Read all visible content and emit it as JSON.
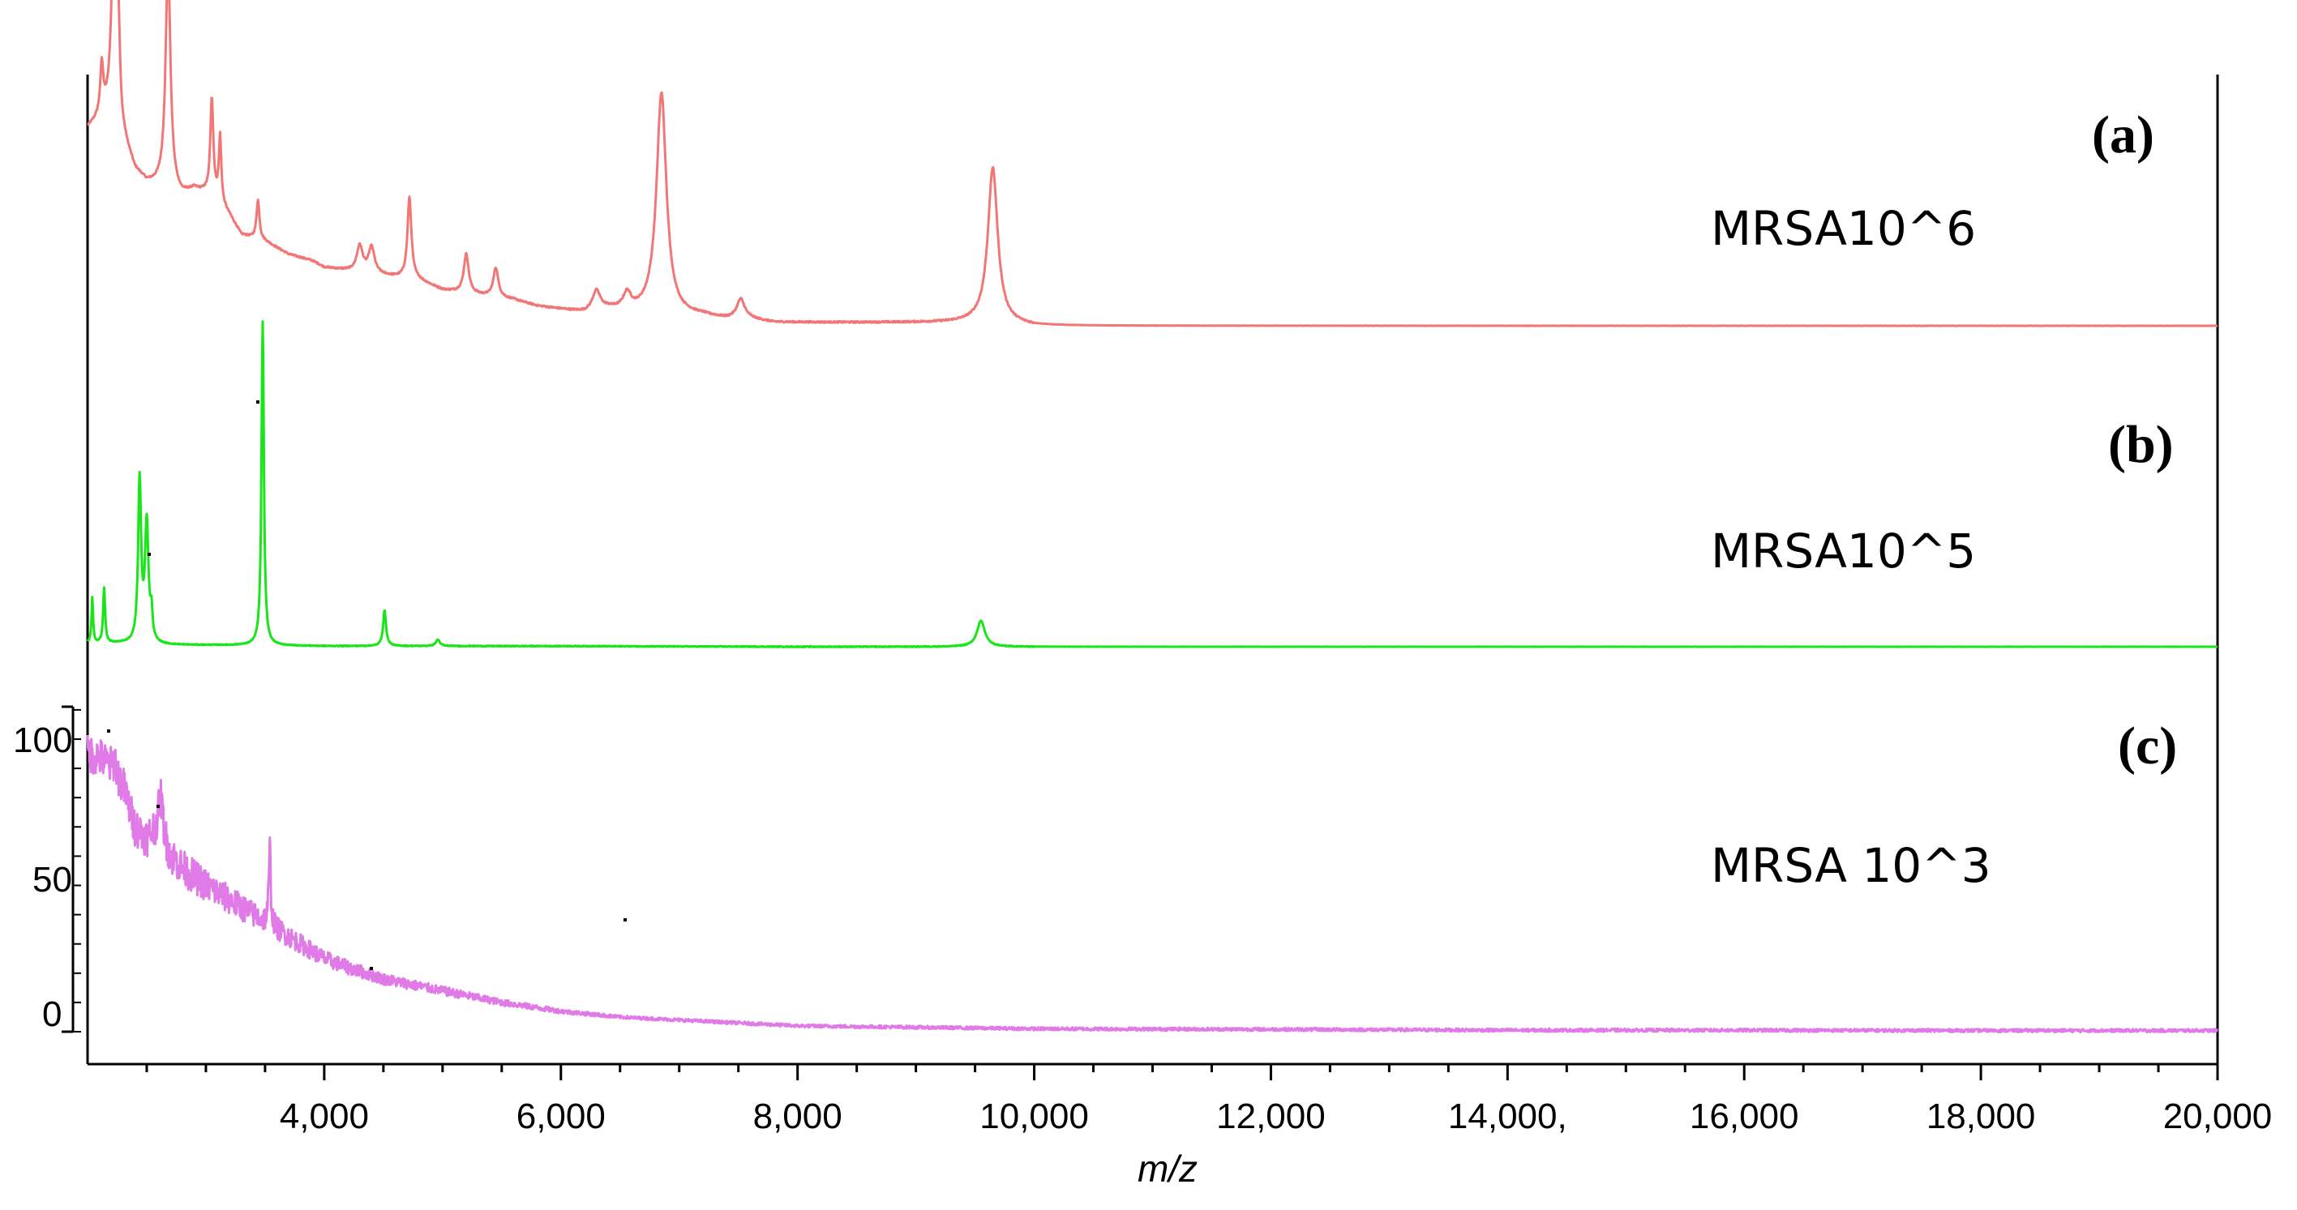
{
  "chart_data": {
    "type": "line",
    "xlabel": "m/z",
    "xlim": [
      2000,
      20000
    ],
    "x_ticks": [
      {
        "value": 4000,
        "label": "4,000"
      },
      {
        "value": 6000,
        "label": "6,000"
      },
      {
        "value": 8000,
        "label": "8,000"
      },
      {
        "value": 10000,
        "label": "10,000"
      },
      {
        "value": 12000,
        "label": "12,000"
      },
      {
        "value": 14000,
        "label": "14,000,"
      },
      {
        "value": 16000,
        "label": "16,000"
      },
      {
        "value": 18000,
        "label": "18,000"
      },
      {
        "value": 20000,
        "label": "20,000"
      }
    ],
    "y_ticks": [
      {
        "value": 100,
        "label": "100"
      },
      {
        "value": 50,
        "label": "50"
      },
      {
        "value": 0,
        "label": "0"
      }
    ],
    "ylim": [
      0,
      100
    ],
    "series": [
      {
        "panel": "(a)",
        "name": "MRSA10^6",
        "color": "#f27676",
        "baseline": 4,
        "points": [
          [
            2000,
            65
          ],
          [
            2100,
            68
          ],
          [
            2200,
            72
          ],
          [
            2300,
            62
          ],
          [
            2400,
            52
          ],
          [
            2500,
            48
          ],
          [
            2600,
            47
          ],
          [
            2700,
            45
          ],
          [
            2800,
            44
          ],
          [
            2900,
            46
          ],
          [
            3000,
            45
          ],
          [
            3100,
            43
          ],
          [
            3200,
            38
          ],
          [
            3300,
            32
          ],
          [
            3400,
            31
          ],
          [
            3500,
            30
          ],
          [
            3600,
            28
          ],
          [
            3700,
            26
          ],
          [
            3800,
            25
          ],
          [
            3900,
            24
          ],
          [
            4000,
            22
          ],
          [
            4200,
            21
          ],
          [
            4400,
            20
          ],
          [
            4600,
            19
          ],
          [
            4800,
            18
          ],
          [
            5000,
            15
          ],
          [
            5200,
            14
          ],
          [
            5400,
            13
          ],
          [
            5600,
            12
          ],
          [
            5800,
            10
          ],
          [
            6000,
            9
          ],
          [
            6200,
            8
          ],
          [
            6400,
            9
          ],
          [
            6600,
            8
          ],
          [
            6800,
            8
          ],
          [
            7000,
            7
          ],
          [
            7200,
            7
          ],
          [
            7400,
            6
          ],
          [
            7600,
            6
          ],
          [
            7800,
            5
          ],
          [
            8000,
            5
          ],
          [
            8500,
            5
          ],
          [
            9000,
            5
          ],
          [
            9500,
            5
          ],
          [
            10000,
            4
          ],
          [
            12000,
            4
          ],
          [
            14000,
            4
          ],
          [
            16000,
            4
          ],
          [
            18000,
            4
          ],
          [
            20000,
            4
          ]
        ],
        "peaks": [
          {
            "x": 2120,
            "h": 15,
            "w": 15
          },
          {
            "x": 2220,
            "h": 52,
            "w": 22
          },
          {
            "x": 2260,
            "h": 30,
            "w": 15
          },
          {
            "x": 2680,
            "h": 70,
            "w": 25
          },
          {
            "x": 3050,
            "h": 30,
            "w": 15
          },
          {
            "x": 3120,
            "h": 20,
            "w": 12
          },
          {
            "x": 3440,
            "h": 12,
            "w": 15
          },
          {
            "x": 4300,
            "h": 8,
            "w": 30
          },
          {
            "x": 4400,
            "h": 8,
            "w": 30
          },
          {
            "x": 4720,
            "h": 25,
            "w": 20
          },
          {
            "x": 5200,
            "h": 12,
            "w": 25
          },
          {
            "x": 5450,
            "h": 9,
            "w": 25
          },
          {
            "x": 6300,
            "h": 6,
            "w": 40
          },
          {
            "x": 6560,
            "h": 5,
            "w": 40
          },
          {
            "x": 6850,
            "h": 68,
            "w": 50
          },
          {
            "x": 7520,
            "h": 6,
            "w": 40
          },
          {
            "x": 9650,
            "h": 48,
            "w": 50
          }
        ]
      },
      {
        "panel": "(b)",
        "name": "MRSA10^5",
        "color": "#19e619",
        "baseline": 1,
        "points": [
          [
            2000,
            2
          ],
          [
            2300,
            2
          ],
          [
            2500,
            1.5
          ],
          [
            3000,
            1.5
          ],
          [
            4000,
            1.2
          ],
          [
            6000,
            1.2
          ],
          [
            8000,
            1
          ],
          [
            10000,
            1
          ],
          [
            20000,
            1
          ]
        ],
        "peaks": [
          {
            "x": 2040,
            "h": 14,
            "w": 8
          },
          {
            "x": 2140,
            "h": 17,
            "w": 10
          },
          {
            "x": 2440,
            "h": 50,
            "w": 15
          },
          {
            "x": 2500,
            "h": 37,
            "w": 18
          },
          {
            "x": 2540,
            "h": 8,
            "w": 10
          },
          {
            "x": 3480,
            "h": 100,
            "w": 12
          },
          {
            "x": 4510,
            "h": 11,
            "w": 15
          },
          {
            "x": 4960,
            "h": 2,
            "w": 20
          },
          {
            "x": 9550,
            "h": 8,
            "w": 40
          }
        ]
      },
      {
        "panel": "(c)",
        "name": "MRSA 10^3",
        "color": "#e07ae6",
        "baseline": 0,
        "points": [
          [
            2000,
            95
          ],
          [
            2100,
            94
          ],
          [
            2200,
            90
          ],
          [
            2300,
            84
          ],
          [
            2400,
            70
          ],
          [
            2500,
            66
          ],
          [
            2600,
            70
          ],
          [
            2700,
            60
          ],
          [
            2800,
            56
          ],
          [
            3000,
            50
          ],
          [
            3200,
            45
          ],
          [
            3400,
            40
          ],
          [
            3600,
            35
          ],
          [
            3800,
            30
          ],
          [
            4000,
            25
          ],
          [
            4200,
            22
          ],
          [
            4500,
            18
          ],
          [
            5000,
            14
          ],
          [
            5500,
            10
          ],
          [
            6000,
            7
          ],
          [
            6500,
            5
          ],
          [
            7000,
            4
          ],
          [
            7500,
            3
          ],
          [
            8000,
            2
          ],
          [
            9000,
            1.5
          ],
          [
            10000,
            1
          ],
          [
            12000,
            0.8
          ],
          [
            14000,
            0.5
          ],
          [
            16000,
            0.5
          ],
          [
            18000,
            0.4
          ],
          [
            20000,
            0.4
          ]
        ],
        "peaks": [
          {
            "x": 2230,
            "h": 5,
            "w": 15
          },
          {
            "x": 2620,
            "h": 12,
            "w": 20
          },
          {
            "x": 3540,
            "h": 25,
            "w": 10
          }
        ]
      }
    ]
  }
}
